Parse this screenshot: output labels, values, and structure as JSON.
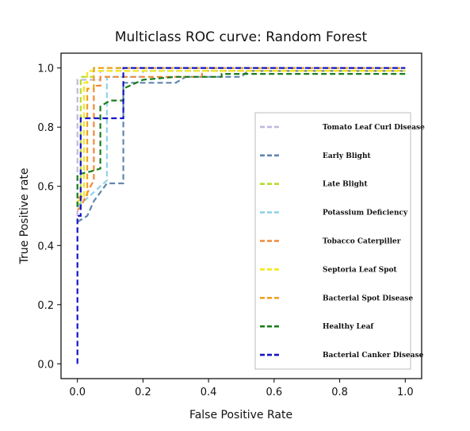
{
  "chart_data": {
    "type": "line",
    "title": "Multiclass ROC curve: Random Forest",
    "xlabel": "False Positive Rate",
    "ylabel": "True Positive rate",
    "xlim": [
      -0.05,
      1.05
    ],
    "ylim": [
      -0.05,
      1.05
    ],
    "x_ticks": [
      "0.0",
      "0.2",
      "0.4",
      "0.6",
      "0.8",
      "1.0"
    ],
    "y_ticks": [
      "0.0",
      "0.2",
      "0.4",
      "0.6",
      "0.8",
      "1.0"
    ],
    "grid": false,
    "legend_position": "center-right",
    "series": [
      {
        "name": "Tomato Leaf Curl Disease",
        "color": "#c2b6e0",
        "points": [
          [
            0.0,
            0.5
          ],
          [
            0.0,
            0.96
          ],
          [
            0.07,
            0.96
          ],
          [
            0.07,
            0.99
          ],
          [
            1.0,
            0.99
          ]
        ]
      },
      {
        "name": "Early Blight",
        "color": "#5f86b0",
        "points": [
          [
            0.0,
            0.48
          ],
          [
            0.03,
            0.5
          ],
          [
            0.05,
            0.55
          ],
          [
            0.09,
            0.61
          ],
          [
            0.14,
            0.61
          ],
          [
            0.14,
            0.95
          ],
          [
            0.3,
            0.95
          ],
          [
            0.33,
            0.97
          ],
          [
            0.5,
            0.97
          ],
          [
            0.52,
            0.99
          ],
          [
            1.0,
            0.99
          ]
        ]
      },
      {
        "name": "Late Blight",
        "color": "#b5dd2c",
        "points": [
          [
            0.0,
            0.54
          ],
          [
            0.01,
            0.54
          ],
          [
            0.01,
            0.97
          ],
          [
            0.05,
            0.97
          ],
          [
            0.05,
            1.0
          ],
          [
            1.0,
            1.0
          ]
        ]
      },
      {
        "name": "Potassium Deficiency",
        "color": "#8fd3e6",
        "points": [
          [
            0.0,
            0.53
          ],
          [
            0.06,
            0.59
          ],
          [
            0.07,
            0.6
          ],
          [
            0.09,
            0.62
          ],
          [
            0.09,
            0.97
          ],
          [
            0.2,
            0.97
          ],
          [
            0.2,
            0.99
          ],
          [
            1.0,
            0.99
          ]
        ]
      },
      {
        "name": "Tobacco Caterpiller",
        "color": "#f08a3c",
        "points": [
          [
            0.0,
            0.52
          ],
          [
            0.01,
            0.53
          ],
          [
            0.04,
            0.6
          ],
          [
            0.05,
            0.62
          ],
          [
            0.05,
            0.94
          ],
          [
            0.07,
            0.94
          ],
          [
            0.07,
            0.97
          ],
          [
            0.38,
            0.97
          ],
          [
            0.38,
            0.99
          ],
          [
            1.0,
            0.99
          ]
        ]
      },
      {
        "name": "Septoria Leaf Spot",
        "color": "#f5e71a",
        "points": [
          [
            0.0,
            0.55
          ],
          [
            0.02,
            0.56
          ],
          [
            0.02,
            0.95
          ],
          [
            0.03,
            0.95
          ],
          [
            0.03,
            0.99
          ],
          [
            1.0,
            0.99
          ]
        ]
      },
      {
        "name": "Bacterial Spot Disease",
        "color": "#efa020",
        "points": [
          [
            0.0,
            0.56
          ],
          [
            0.03,
            0.57
          ],
          [
            0.03,
            0.93
          ],
          [
            0.05,
            0.93
          ],
          [
            0.05,
            1.0
          ],
          [
            1.0,
            1.0
          ]
        ]
      },
      {
        "name": "Healthy Leaf",
        "color": "#1a7d1a",
        "points": [
          [
            0.0,
            0.53
          ],
          [
            0.0,
            0.64
          ],
          [
            0.04,
            0.65
          ],
          [
            0.07,
            0.66
          ],
          [
            0.07,
            0.87
          ],
          [
            0.1,
            0.89
          ],
          [
            0.14,
            0.89
          ],
          [
            0.14,
            0.93
          ],
          [
            0.2,
            0.96
          ],
          [
            0.3,
            0.97
          ],
          [
            0.44,
            0.97
          ],
          [
            0.44,
            0.98
          ],
          [
            1.0,
            0.98
          ]
        ]
      },
      {
        "name": "Bacterial Canker Disease",
        "color": "#1414c8",
        "points": [
          [
            0.0,
            0.0
          ],
          [
            0.0,
            0.5
          ],
          [
            0.01,
            0.5
          ],
          [
            0.01,
            0.83
          ],
          [
            0.14,
            0.83
          ],
          [
            0.14,
            1.0
          ],
          [
            1.0,
            1.0
          ]
        ]
      }
    ]
  }
}
